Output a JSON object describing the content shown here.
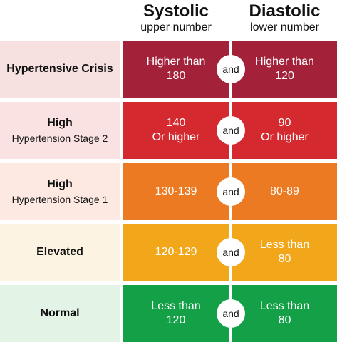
{
  "header": {
    "systolic_title": "Systolic",
    "systolic_sub": "upper number",
    "diastolic_title": "Diastolic",
    "diastolic_sub": "lower number"
  },
  "connector": "and",
  "rows": [
    {
      "category": "Hypertensive Crisis",
      "stage": "",
      "systolic_1": "Higher than",
      "systolic_2": "180",
      "diastolic_1": "Higher than",
      "diastolic_2": "120",
      "bg": "#f6e0e0",
      "color": "#a3223a"
    },
    {
      "category": "High",
      "stage": "Hypertension Stage 2",
      "systolic_1": "140",
      "systolic_2": "Or higher",
      "diastolic_1": "90",
      "diastolic_2": "Or higher",
      "bg": "#fbe2e2",
      "color": "#d42a2f"
    },
    {
      "category": "High",
      "stage": "Hypertension Stage 1",
      "systolic_1": "130-139",
      "systolic_2": "",
      "diastolic_1": "80-89",
      "diastolic_2": "",
      "bg": "#fde9e1",
      "color": "#ec7a22"
    },
    {
      "category": "Elevated",
      "stage": "",
      "systolic_1": "120-129",
      "systolic_2": "",
      "diastolic_1": "Less than",
      "diastolic_2": "80",
      "bg": "#fdf3e3",
      "color": "#f2a61a"
    },
    {
      "category": "Normal",
      "stage": "",
      "systolic_1": "Less than",
      "systolic_2": "120",
      "diastolic_1": "Less than",
      "diastolic_2": "80",
      "bg": "#e3f3e6",
      "color": "#13a047"
    }
  ]
}
